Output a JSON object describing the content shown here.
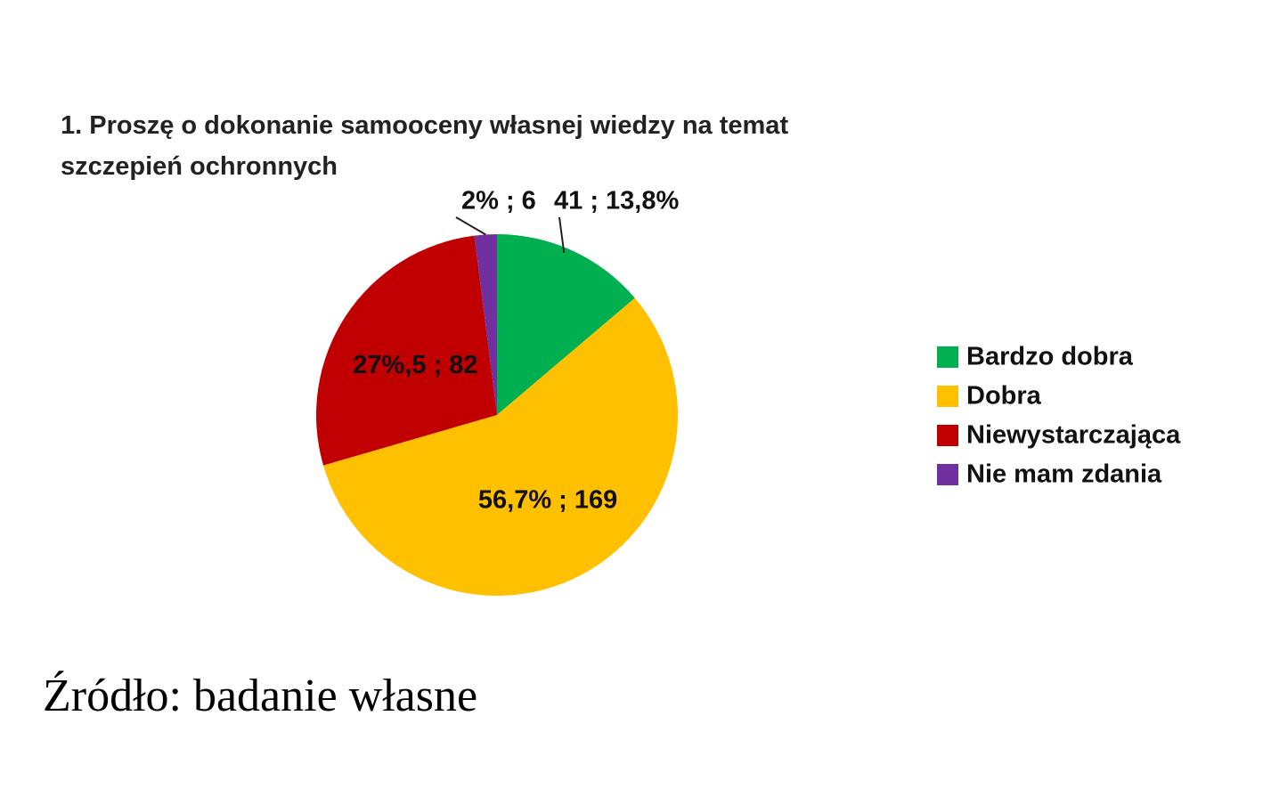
{
  "chart_data": {
    "type": "pie",
    "title": "1.  Proszę o dokonanie samooceny własnej wiedzy na temat szczepień ochronnych",
    "categories": [
      "Bardzo dobra",
      "Dobra",
      "Niewystarczająca",
      "Nie mam zdania"
    ],
    "values": [
      13.8,
      56.7,
      27.5,
      2
    ],
    "value_labels": [
      "41 ; 13,8%",
      "56,7% ; 169",
      "27%,5 ; 82",
      "2% ; 6"
    ],
    "colors": [
      "#00b050",
      "#ffc000",
      "#c00000",
      "#7030a0"
    ],
    "legend": "right",
    "source": "Źródło: badanie własne"
  }
}
